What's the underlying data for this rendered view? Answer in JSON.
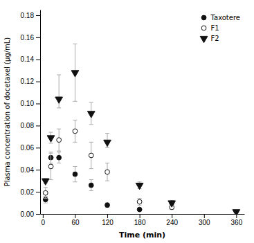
{
  "chart_data": {
    "type": "scatter",
    "xlabel": "Time (min)",
    "ylabel": "Plasma concentration of docetaxel (μg/mL)",
    "xlim": [
      -5,
      375
    ],
    "ylim": [
      0.0,
      0.185
    ],
    "xticks": [
      0,
      60,
      120,
      180,
      240,
      300,
      360
    ],
    "yticks": [
      {
        "value": 0.0,
        "label": "0.00"
      },
      0.02,
      0.04,
      0.06,
      0.08,
      {
        "value": 0.1,
        "label": "0.10"
      },
      0.12,
      0.14,
      0.16,
      0.18
    ],
    "grid": false,
    "legend": "upper right",
    "series": [
      {
        "name": "Taxotere",
        "color": "#111111",
        "marker": "circle",
        "x": [
          5,
          15,
          30,
          60,
          90,
          120,
          180,
          240
        ],
        "values": [
          0.013,
          0.051,
          0.051,
          0.036,
          0.026,
          0.008,
          0.004,
          0.01
        ],
        "yerr_lo": [
          0.003,
          0.005,
          0.005,
          0.007,
          0.005,
          0.002,
          0.001,
          0.002
        ],
        "yerr_hi": [
          0.003,
          0.005,
          0.005,
          0.007,
          0.005,
          0.002,
          0.001,
          0.002
        ]
      },
      {
        "name": "F1",
        "color": "#111111",
        "marker": "circle-open",
        "x": [
          5,
          15,
          30,
          60,
          90,
          120,
          180,
          240
        ],
        "values": [
          0.019,
          0.043,
          0.067,
          0.075,
          0.053,
          0.038,
          0.011,
          0.006
        ],
        "yerr_lo": [
          0.005,
          0.012,
          0.01,
          0.01,
          0.012,
          0.008,
          0.003,
          0.002
        ],
        "yerr_hi": [
          0.005,
          0.012,
          0.01,
          0.01,
          0.012,
          0.008,
          0.003,
          0.002
        ]
      },
      {
        "name": "F2",
        "color": "#111111",
        "marker": "triangle-down",
        "x": [
          5,
          15,
          30,
          60,
          90,
          120,
          180,
          240,
          360
        ],
        "values": [
          0.03,
          0.069,
          0.104,
          0.128,
          0.091,
          0.065,
          0.026,
          0.01,
          0.002
        ],
        "yerr_lo": [
          0.002,
          0.005,
          0.008,
          0.026,
          0.01,
          0.005,
          0.003,
          0.002,
          0.001
        ],
        "yerr_hi": [
          0.002,
          0.005,
          0.022,
          0.026,
          0.01,
          0.008,
          0.003,
          0.002,
          0.001
        ]
      }
    ]
  }
}
